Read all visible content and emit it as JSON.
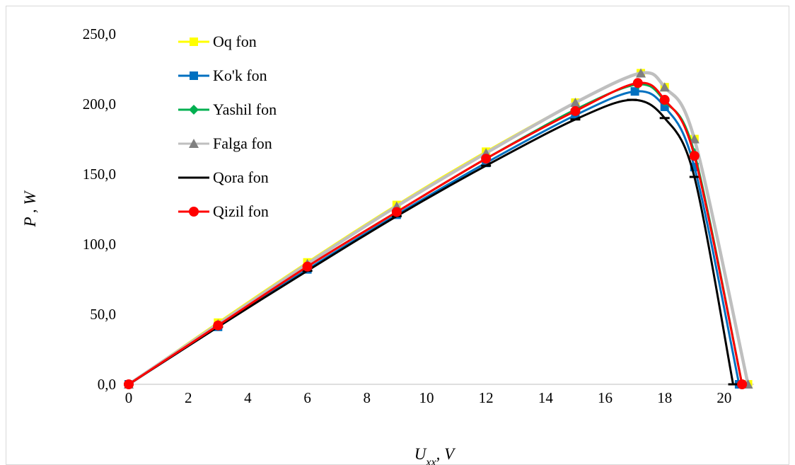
{
  "chart_data": {
    "type": "line",
    "title": "",
    "xlabel": "U",
    "xlabel_sub": "xx",
    "xlabel_suffix": ", V",
    "ylabel": "P , W",
    "xlim": [
      0,
      21
    ],
    "ylim": [
      0,
      250
    ],
    "x_ticks": [
      0,
      2,
      4,
      6,
      8,
      10,
      12,
      14,
      16,
      18,
      20
    ],
    "y_ticks": [
      0,
      50,
      100,
      150,
      200,
      250
    ],
    "y_tick_labels": [
      "0,0",
      "50,0",
      "100,0",
      "150,0",
      "200,0",
      "250,0"
    ],
    "grid": false,
    "legend_position": "top-left",
    "series": [
      {
        "name": "Oq fon",
        "color": "#ffff00",
        "marker": "square",
        "x": [
          0,
          3,
          6,
          9,
          12,
          15,
          17.2,
          18,
          19,
          20.8
        ],
        "y": [
          0,
          44,
          87,
          128,
          166,
          201,
          222,
          212,
          175,
          0
        ]
      },
      {
        "name": "Ko'k fon",
        "color": "#0070c0",
        "marker": "square",
        "x": [
          0,
          3,
          6,
          9,
          12,
          15,
          17,
          18,
          19,
          20.5
        ],
        "y": [
          0,
          41,
          82,
          121,
          158,
          192,
          209,
          198,
          155,
          0
        ]
      },
      {
        "name": "Yashil fon",
        "color": "#00b050",
        "marker": "diamond",
        "x": [
          0,
          3,
          6,
          9,
          12,
          15,
          17.1,
          18,
          19,
          20.6
        ],
        "y": [
          0,
          42,
          84,
          123,
          161,
          196,
          214,
          202,
          165,
          0
        ]
      },
      {
        "name": "Falga fon",
        "color": "#bfbfbf",
        "marker": "triangle",
        "x": [
          0,
          3,
          6,
          9,
          12,
          15,
          17.2,
          18,
          19,
          20.8
        ],
        "y": [
          0,
          43,
          86,
          127,
          165,
          201,
          222,
          212,
          175,
          0
        ]
      },
      {
        "name": "Qora fon",
        "color": "#000000",
        "marker": "dash",
        "x": [
          0,
          3,
          6,
          9,
          12,
          15,
          16.9,
          18,
          19,
          20.3
        ],
        "y": [
          0,
          41,
          81,
          120,
          156,
          189,
          203,
          190,
          148,
          0
        ]
      },
      {
        "name": "Qizil fon",
        "color": "#ff0000",
        "marker": "circle",
        "x": [
          0,
          3,
          6,
          9,
          12,
          15,
          17.1,
          18,
          19,
          20.6
        ],
        "y": [
          0,
          42,
          84,
          123,
          161,
          195,
          215,
          203,
          163,
          0
        ]
      }
    ]
  }
}
